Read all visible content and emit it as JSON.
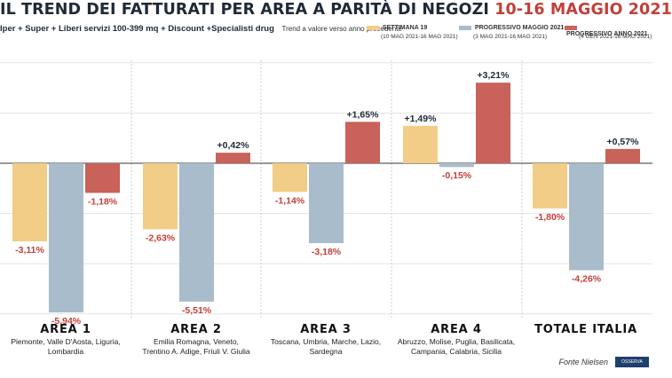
{
  "header": {
    "title_main": "IL TREND DEI FATTURATI PER AREA A PARITÀ DI NEGOZI",
    "title_dates": "10-16 MAGGIO 2021",
    "subtitle": "Iper + Super + Liberi servizi 100-399 mq + Discount +Specialisti drug",
    "subtitle_note": "Trend a valore verso anno precedente"
  },
  "legend": [
    {
      "title": "SETTIMANA 19",
      "sub": "(10 MAG 2021-16 MAG 2021)",
      "color": "#f2cd87"
    },
    {
      "title": "PROGRESSIVO MAGGIO 2021",
      "sub": "(3 MAG 2021-16 MAG 2021)",
      "color": "#a9bccb"
    },
    {
      "title": "PROGRESSIVO ANNO 2021",
      "sub": "(4 GEN 2021-16 MAG 2021)",
      "color": "#c8625a"
    }
  ],
  "source": "Fonte Nielsen",
  "logo_text": "OSSERVA ITALIA",
  "chart_data": {
    "type": "bar",
    "categories": [
      "AREA 1",
      "AREA 2",
      "AREA 3",
      "AREA 4",
      "TOTALE ITALIA"
    ],
    "category_details": [
      [
        "Piemonte, Valle D'Aosta, Liguria,",
        "Lombardia"
      ],
      [
        "Emilia Romagna, Veneto,",
        "Trentino A. Adige, Friuli V. Giulia"
      ],
      [
        "Toscana, Umbria, Marche, Lazio,",
        "Sardegna"
      ],
      [
        "Abruzzo, Molise, Puglia, Basilicata,",
        "Campania, Calabria, Sicilia"
      ],
      []
    ],
    "series": [
      {
        "name": "SETTIMANA 19",
        "values": [
          -3.11,
          -2.63,
          -1.14,
          1.49,
          -1.8
        ],
        "labels": [
          "-3,11%",
          "-2,63%",
          "-1,14%",
          "+1,49%",
          "-1,80%"
        ],
        "color": "#f2cd87"
      },
      {
        "name": "PROGRESSIVO MAGGIO 2021",
        "values": [
          -5.94,
          -5.51,
          -3.18,
          -0.15,
          -4.26
        ],
        "labels": [
          "-5,94%",
          "-5,51%",
          "-3,18%",
          "-0,15%",
          "-4,26%"
        ],
        "color": "#a9bccb"
      },
      {
        "name": "PROGRESSIVO ANNO 2021",
        "values": [
          -1.18,
          0.42,
          1.65,
          3.21,
          0.57
        ],
        "labels": [
          "-1,18%",
          "+0,42%",
          "+1,65%",
          "+3,21%",
          "+0,57%"
        ],
        "color": "#c8625a"
      }
    ],
    "grid": true,
    "legend": "top-right"
  }
}
